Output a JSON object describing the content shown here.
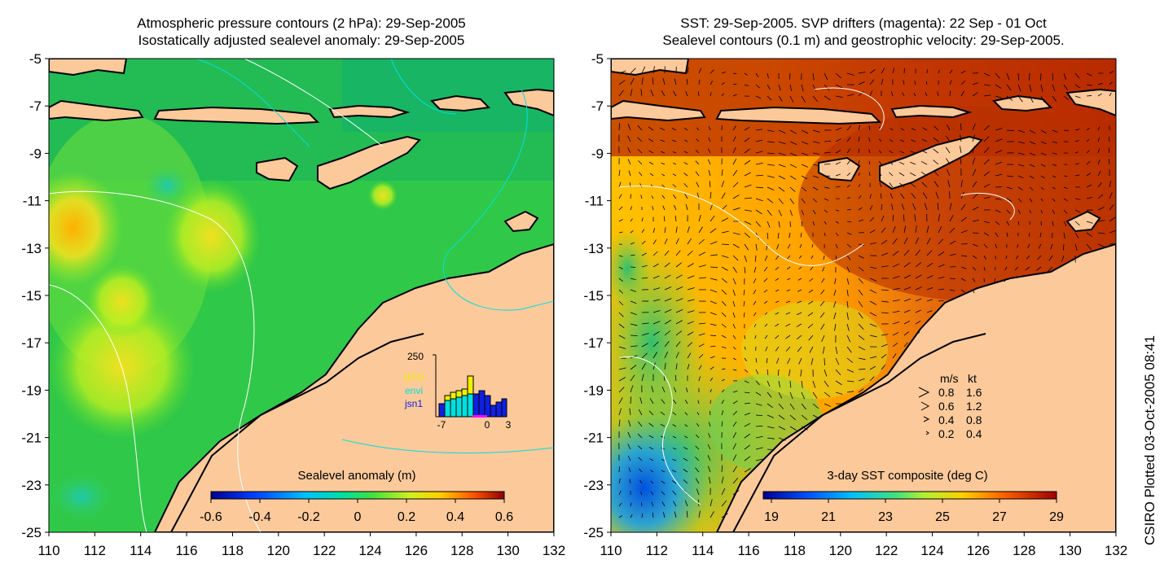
{
  "left_panel": {
    "title_line1": "Atmospheric pressure contours (2 hPa): 29-Sep-2005",
    "title_line2": "Isostatically adjusted sealevel anomaly: 29-Sep-2005",
    "colorbar": {
      "label": "Sealevel anomaly (m)",
      "ticks": [
        "-0.6",
        "-0.4",
        "-0.2",
        "0",
        "0.2",
        "0.4",
        "0.6"
      ]
    },
    "inset": {
      "y_max_label": "250",
      "x_tick_labels": [
        "-7",
        "0",
        "3"
      ],
      "legend": [
        {
          "label": "GFO",
          "color": "#f0f000"
        },
        {
          "label": "envi",
          "color": "#00e0e0"
        },
        {
          "label": "jsn1",
          "color": "#1020e0"
        }
      ]
    }
  },
  "right_panel": {
    "title_line1": "SST: 29-Sep-2005. SVP drifters (magenta): 22 Sep - 01 Oct",
    "title_line2": "Sealevel contours (0.1 m) and geostrophic velocity: 29-Sep-2005.",
    "colorbar": {
      "label": "3-day SST composite (deg C)",
      "ticks": [
        "19",
        "21",
        "23",
        "25",
        "27",
        "29"
      ]
    },
    "velocity_legend": {
      "header_ms": "m/s",
      "header_kt": "kt",
      "rows": [
        {
          "ms": "0.8",
          "kt": "1.6"
        },
        {
          "ms": "0.6",
          "kt": "1.2"
        },
        {
          "ms": "0.4",
          "kt": "0.8"
        },
        {
          "ms": "0.2",
          "kt": "0.4"
        }
      ]
    }
  },
  "axes": {
    "lat_labels": [
      "-5",
      "-7",
      "-9",
      "-11",
      "-13",
      "-15",
      "-17",
      "-19",
      "-21",
      "-23",
      "-25"
    ],
    "lon_labels": [
      "110",
      "112",
      "114",
      "116",
      "118",
      "120",
      "122",
      "124",
      "126",
      "128",
      "130",
      "132"
    ]
  },
  "credit": "CSIRO Plotted 03-Oct-2005 08:41",
  "colors": {
    "land": "#fbc99a",
    "coast": "#000000",
    "pressure_contour": "#ffffff",
    "sla_contour": "#00e0e0",
    "drifter": "#ff00ff"
  }
}
